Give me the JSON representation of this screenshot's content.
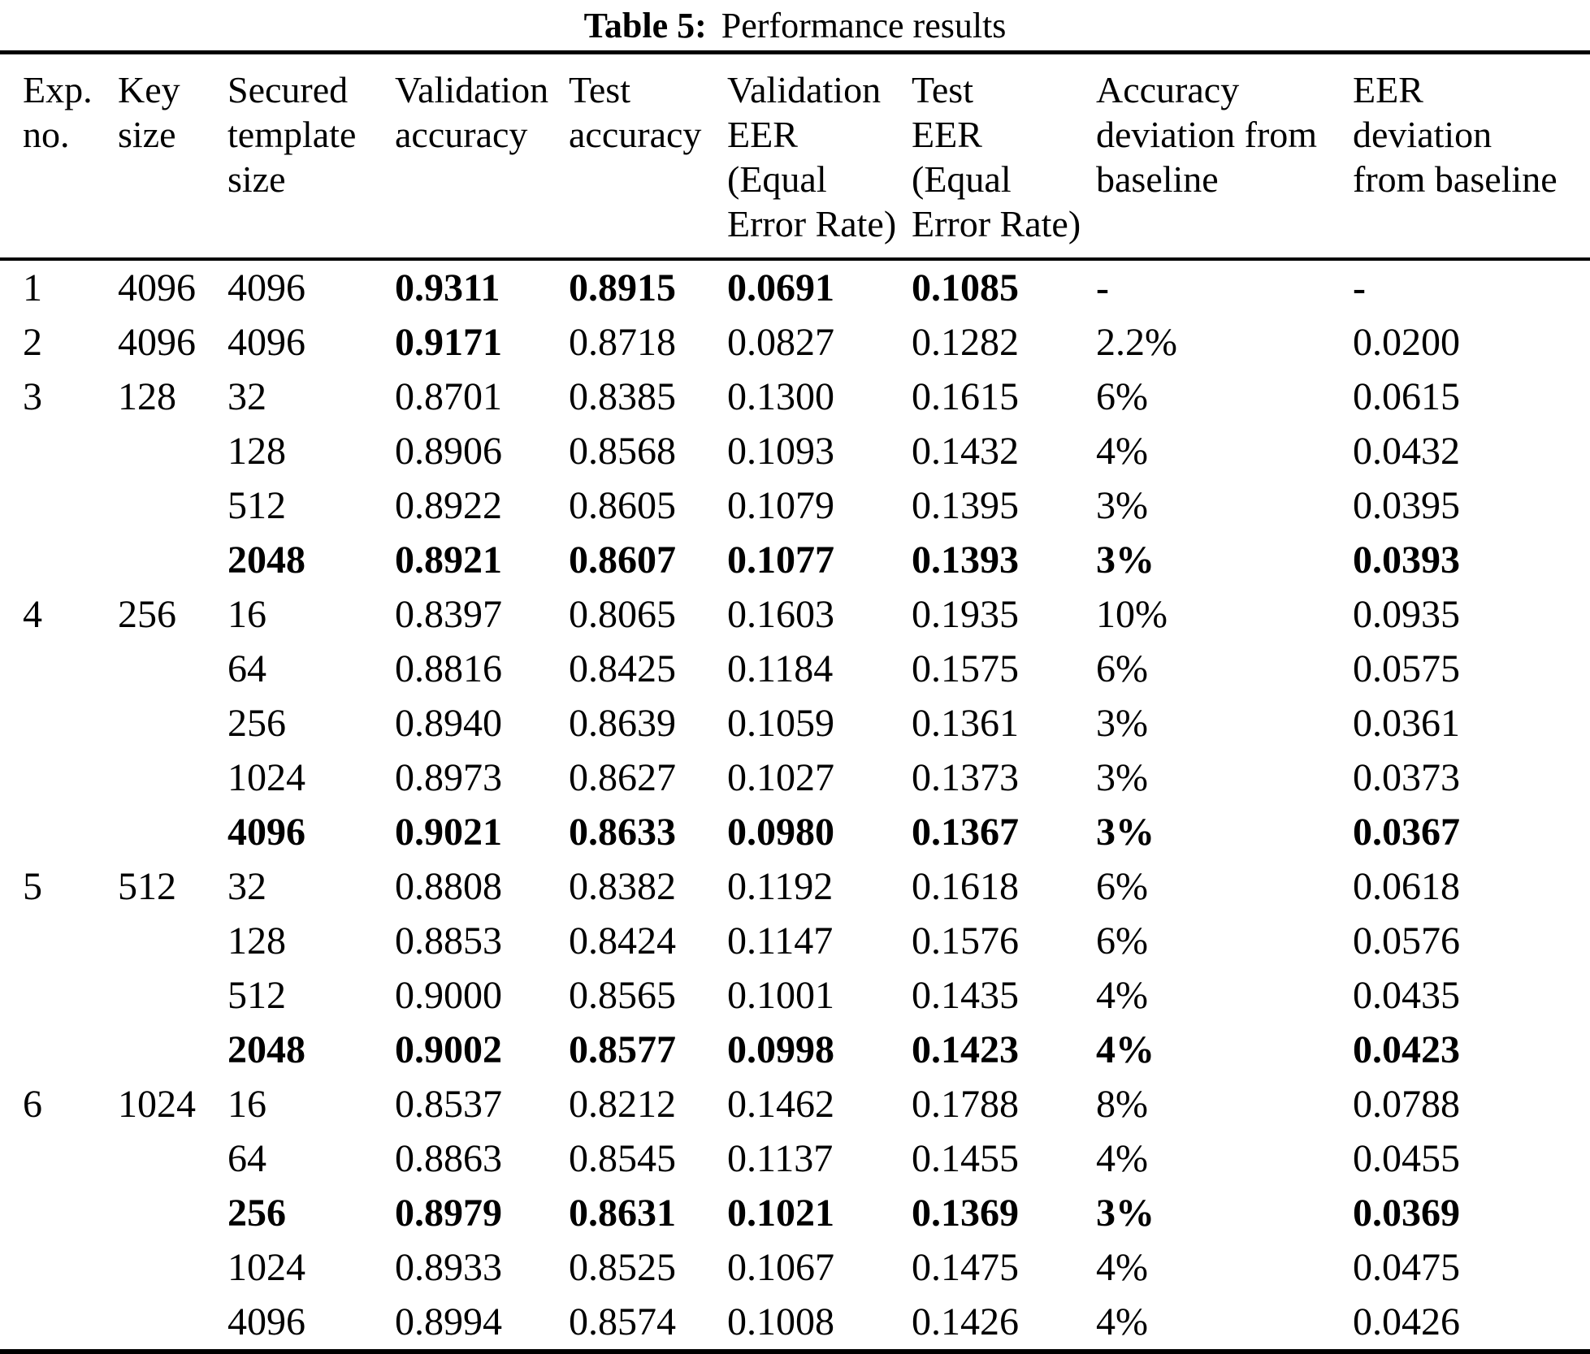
{
  "title": {
    "label": "Table 5:",
    "caption": "Performance results"
  },
  "table": {
    "headers": [
      [
        "Exp.",
        "no."
      ],
      [
        "Key",
        "size"
      ],
      [
        "Secured",
        "template",
        "size"
      ],
      [
        "Validation",
        "accuracy"
      ],
      [
        "Test",
        "accuracy"
      ],
      [
        "Validation",
        "EER",
        "(Equal",
        "Error Rate)"
      ],
      [
        "Test",
        "EER",
        "(Equal",
        "Error Rate)"
      ],
      [
        "Accuracy",
        "deviation from",
        "baseline"
      ],
      [
        "EER",
        "deviation",
        "from baseline"
      ]
    ],
    "rows": [
      {
        "cells": [
          "1",
          "4096",
          "4096",
          "0.9311",
          "0.8915",
          "0.0691",
          "0.1085",
          "-",
          "-"
        ],
        "bold": [
          3,
          4,
          5,
          6,
          7,
          8
        ]
      },
      {
        "cells": [
          "2",
          "4096",
          "4096",
          "0.9171",
          "0.8718",
          "0.0827",
          "0.1282",
          "2.2%",
          "0.0200"
        ],
        "bold": [
          3
        ]
      },
      {
        "cells": [
          "3",
          "128",
          "32",
          "0.8701",
          "0.8385",
          "0.1300",
          "0.1615",
          "6%",
          "0.0615"
        ],
        "bold": []
      },
      {
        "cells": [
          "",
          "",
          "128",
          "0.8906",
          "0.8568",
          "0.1093",
          "0.1432",
          "4%",
          "0.0432"
        ],
        "bold": []
      },
      {
        "cells": [
          "",
          "",
          "512",
          "0.8922",
          "0.8605",
          "0.1079",
          "0.1395",
          "3%",
          "0.0395"
        ],
        "bold": []
      },
      {
        "cells": [
          "",
          "",
          "2048",
          "0.8921",
          "0.8607",
          "0.1077",
          "0.1393",
          "3%",
          "0.0393"
        ],
        "bold": [
          2,
          3,
          4,
          5,
          6,
          7,
          8
        ]
      },
      {
        "cells": [
          "4",
          "256",
          "16",
          "0.8397",
          "0.8065",
          "0.1603",
          "0.1935",
          "10%",
          "0.0935"
        ],
        "bold": []
      },
      {
        "cells": [
          "",
          "",
          "64",
          "0.8816",
          "0.8425",
          "0.1184",
          "0.1575",
          "6%",
          "0.0575"
        ],
        "bold": []
      },
      {
        "cells": [
          "",
          "",
          "256",
          "0.8940",
          "0.8639",
          "0.1059",
          "0.1361",
          "3%",
          "0.0361"
        ],
        "bold": []
      },
      {
        "cells": [
          "",
          "",
          "1024",
          "0.8973",
          "0.8627",
          "0.1027",
          "0.1373",
          "3%",
          "0.0373"
        ],
        "bold": []
      },
      {
        "cells": [
          "",
          "",
          "4096",
          "0.9021",
          "0.8633",
          "0.0980",
          "0.1367",
          "3%",
          "0.0367"
        ],
        "bold": [
          2,
          3,
          4,
          5,
          6,
          7,
          8
        ]
      },
      {
        "cells": [
          "5",
          "512",
          "32",
          "0.8808",
          "0.8382",
          "0.1192",
          "0.1618",
          "6%",
          "0.0618"
        ],
        "bold": []
      },
      {
        "cells": [
          "",
          "",
          "128",
          "0.8853",
          "0.8424",
          "0.1147",
          "0.1576",
          "6%",
          "0.0576"
        ],
        "bold": []
      },
      {
        "cells": [
          "",
          "",
          "512",
          "0.9000",
          "0.8565",
          "0.1001",
          "0.1435",
          "4%",
          "0.0435"
        ],
        "bold": []
      },
      {
        "cells": [
          "",
          "",
          "2048",
          "0.9002",
          "0.8577",
          "0.0998",
          "0.1423",
          "4%",
          "0.0423"
        ],
        "bold": [
          2,
          3,
          4,
          5,
          6,
          7,
          8
        ]
      },
      {
        "cells": [
          "6",
          "1024",
          "16",
          "0.8537",
          "0.8212",
          "0.1462",
          "0.1788",
          "8%",
          "0.0788"
        ],
        "bold": []
      },
      {
        "cells": [
          "",
          "",
          "64",
          "0.8863",
          "0.8545",
          "0.1137",
          "0.1455",
          "4%",
          "0.0455"
        ],
        "bold": []
      },
      {
        "cells": [
          "",
          "",
          "256",
          "0.8979",
          "0.8631",
          "0.1021",
          "0.1369",
          "3%",
          "0.0369"
        ],
        "bold": [
          2,
          3,
          4,
          5,
          6,
          7,
          8
        ]
      },
      {
        "cells": [
          "",
          "",
          "1024",
          "0.8933",
          "0.8525",
          "0.1067",
          "0.1475",
          "4%",
          "0.0475"
        ],
        "bold": []
      },
      {
        "cells": [
          "",
          "",
          "4096",
          "0.8994",
          "0.8574",
          "0.1008",
          "0.1426",
          "4%",
          "0.0426"
        ],
        "bold": []
      }
    ]
  }
}
